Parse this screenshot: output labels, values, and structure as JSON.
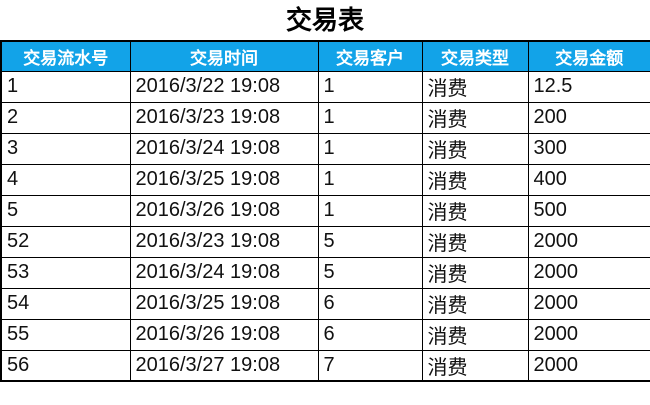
{
  "page": {
    "title": "交易表"
  },
  "colors": {
    "header_bg": "#12a3e8",
    "header_text": "#ffffff",
    "border": "#000000",
    "cell_text": "#111111"
  },
  "table": {
    "columns": [
      {
        "key": "serial",
        "label": "交易流水号"
      },
      {
        "key": "time",
        "label": "交易时间"
      },
      {
        "key": "customer",
        "label": "交易客户"
      },
      {
        "key": "type",
        "label": "交易类型"
      },
      {
        "key": "amount",
        "label": "交易金额"
      }
    ],
    "rows": [
      [
        "1",
        "2016/3/22 19:08",
        "1",
        "消费",
        "12.5"
      ],
      [
        "2",
        "2016/3/23 19:08",
        "1",
        "消费",
        "200"
      ],
      [
        "3",
        "2016/3/24 19:08",
        "1",
        "消费",
        "300"
      ],
      [
        "4",
        "2016/3/25 19:08",
        "1",
        "消费",
        "400"
      ],
      [
        "5",
        "2016/3/26 19:08",
        "1",
        "消费",
        "500"
      ],
      [
        "52",
        "2016/3/23 19:08",
        "5",
        "消费",
        "2000"
      ],
      [
        "53",
        "2016/3/24 19:08",
        "5",
        "消费",
        "2000"
      ],
      [
        "54",
        "2016/3/25 19:08",
        "6",
        "消费",
        "2000"
      ],
      [
        "55",
        "2016/3/26 19:08",
        "6",
        "消费",
        "2000"
      ],
      [
        "56",
        "2016/3/27 19:08",
        "7",
        "消费",
        "2000"
      ]
    ]
  },
  "chart_data": {
    "type": "table",
    "title": "交易表",
    "columns": [
      "交易流水号",
      "交易时间",
      "交易客户",
      "交易类型",
      "交易金额"
    ],
    "rows": [
      [
        "1",
        "2016/3/22 19:08",
        "1",
        "消费",
        "12.5"
      ],
      [
        "2",
        "2016/3/23 19:08",
        "1",
        "消费",
        "200"
      ],
      [
        "3",
        "2016/3/24 19:08",
        "1",
        "消费",
        "300"
      ],
      [
        "4",
        "2016/3/25 19:08",
        "1",
        "消费",
        "400"
      ],
      [
        "5",
        "2016/3/26 19:08",
        "1",
        "消费",
        "500"
      ],
      [
        "52",
        "2016/3/23 19:08",
        "5",
        "消费",
        "2000"
      ],
      [
        "53",
        "2016/3/24 19:08",
        "5",
        "消费",
        "2000"
      ],
      [
        "54",
        "2016/3/25 19:08",
        "6",
        "消费",
        "2000"
      ],
      [
        "55",
        "2016/3/26 19:08",
        "6",
        "消费",
        "2000"
      ],
      [
        "56",
        "2016/3/27 19:08",
        "7",
        "消费",
        "2000"
      ]
    ]
  }
}
